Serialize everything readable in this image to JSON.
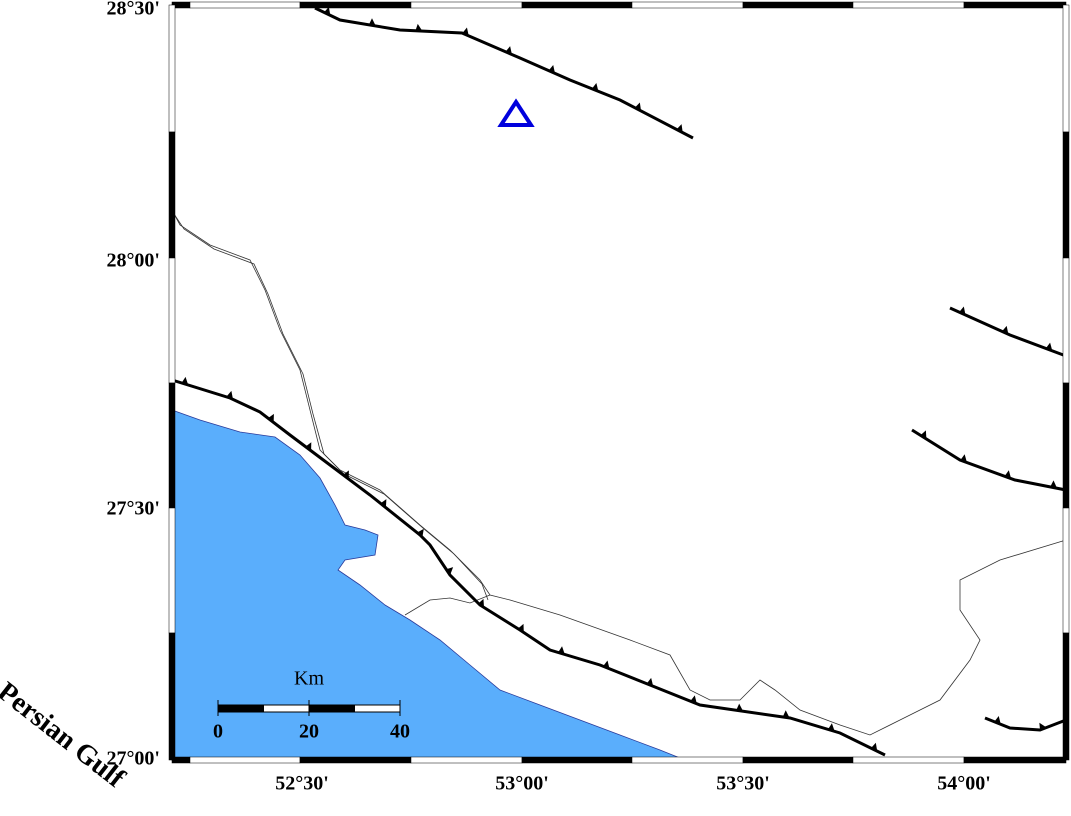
{
  "map": {
    "lat_labels": [
      "28°30'",
      "28°00'",
      "27°30'",
      "27°00'"
    ],
    "lon_labels": [
      "52°30'",
      "53°00'",
      "53°30'",
      "54°00'"
    ],
    "scale_bar": {
      "title": "Km",
      "labels": [
        "0",
        "20",
        "40"
      ]
    },
    "water_label": "Persian Gulf"
  }
}
